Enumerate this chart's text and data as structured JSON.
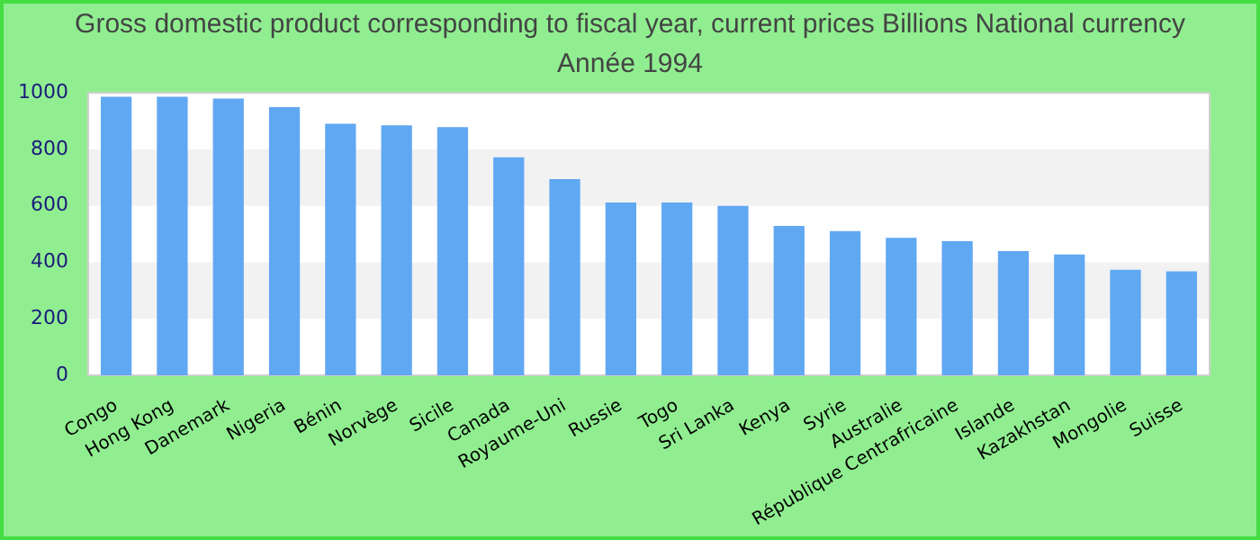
{
  "chart_data": {
    "type": "bar",
    "title": "Gross domestic product corresponding to fiscal year, current prices Billions National currency",
    "subtitle": "Année 1994",
    "categories": [
      "Congo",
      "Hong Kong",
      "Danemark",
      "Nigeria",
      "Bénin",
      "Norvège",
      "Sicile",
      "Canada",
      "Royaume-Uni",
      "Russie",
      "Togo",
      "Sri Lanka",
      "Kenya",
      "Syrie",
      "Australie",
      "République Centrafricaine",
      "Islande",
      "Kazakhstan",
      "Mongolie",
      "Suisse"
    ],
    "values": [
      986,
      986,
      980,
      950,
      891,
      885,
      879,
      772,
      695,
      612,
      612,
      600,
      529,
      511,
      487,
      475,
      440,
      428,
      374,
      368
    ],
    "color": "#61a8f3",
    "ylim": [
      0,
      1000
    ],
    "yticks": [
      0,
      200,
      400,
      600,
      800,
      1000
    ]
  }
}
